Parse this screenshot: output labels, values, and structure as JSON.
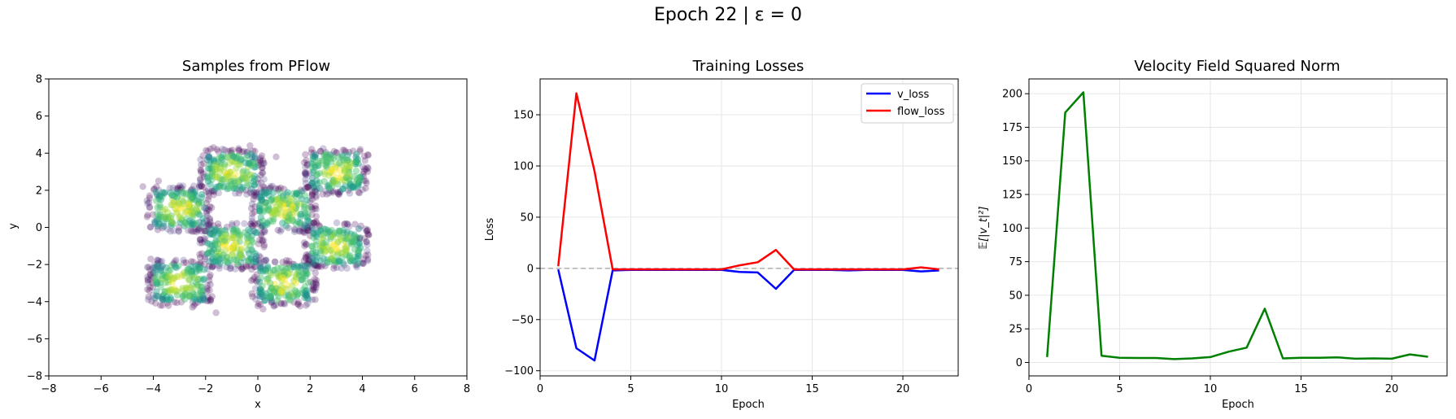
{
  "figure": {
    "suptitle": "Epoch 22 | ε = 0"
  },
  "colors": {
    "v_loss": "#0000ff",
    "flow_loss": "#ff0000",
    "norm": "#008000",
    "grid": "#e6e6e6",
    "zero_line": "#b0b0b0"
  },
  "chart_data": [
    {
      "type": "scatter",
      "title": "Samples from PFlow",
      "xlabel": "x",
      "ylabel": "y",
      "xlim": [
        -8,
        8
      ],
      "ylim": [
        -8,
        8
      ],
      "xticks": [
        "−8",
        "−6",
        "−4",
        "−2",
        "0",
        "2",
        "4",
        "6",
        "8"
      ],
      "yticks": [
        "−8",
        "−6",
        "−4",
        "−2",
        "0",
        "2",
        "4",
        "6",
        "8"
      ],
      "grid": false,
      "colormap": "viridis",
      "clusters": [
        {
          "x": [
            -2,
            0
          ],
          "y": [
            2,
            4
          ]
        },
        {
          "x": [
            2,
            4
          ],
          "y": [
            2,
            4
          ]
        },
        {
          "x": [
            -4,
            -2
          ],
          "y": [
            0,
            2
          ]
        },
        {
          "x": [
            0,
            2
          ],
          "y": [
            0,
            2
          ]
        },
        {
          "x": [
            -2,
            0
          ],
          "y": [
            -2,
            0
          ]
        },
        {
          "x": [
            2,
            4
          ],
          "y": [
            -2,
            0
          ]
        },
        {
          "x": [
            -4,
            -2
          ],
          "y": [
            -4,
            -2
          ]
        },
        {
          "x": [
            0,
            2
          ],
          "y": [
            -4,
            -2
          ]
        }
      ]
    },
    {
      "type": "line",
      "title": "Training Losses",
      "xlabel": "Epoch",
      "ylabel": "Loss",
      "xlim": [
        0,
        23.05
      ],
      "ylim": [
        -105,
        185
      ],
      "xticks": [
        "0",
        "5",
        "10",
        "15",
        "20"
      ],
      "yticks": [
        "−100",
        "−50",
        "0",
        "50",
        "100",
        "150"
      ],
      "grid": true,
      "legend": "top-right",
      "x": [
        1,
        2,
        3,
        4,
        5,
        6,
        7,
        8,
        9,
        10,
        11,
        12,
        13,
        14,
        15,
        16,
        17,
        18,
        19,
        20,
        21,
        22
      ],
      "series": [
        {
          "name": "v_loss",
          "values": [
            -1,
            -78,
            -90,
            -2,
            -1.5,
            -1.5,
            -1.5,
            -1.5,
            -1.5,
            -1.5,
            -3.5,
            -4,
            -20,
            -1.5,
            -1.5,
            -1.5,
            -2,
            -1.5,
            -1.5,
            -1.5,
            -3,
            -2
          ]
        },
        {
          "name": "flow_loss",
          "values": [
            2,
            171,
            95,
            -1,
            -1,
            -1,
            -1,
            -1,
            -1,
            -1,
            3,
            6,
            18,
            -1,
            -1,
            -1,
            -1,
            -1,
            -1,
            -1,
            1,
            -1
          ]
        }
      ],
      "reference_line": 0
    },
    {
      "type": "line",
      "title": "Velocity Field Squared Norm",
      "xlabel": "Epoch",
      "ylabel": "𝔼[|v_t|²]",
      "xlim": [
        0,
        23.05
      ],
      "ylim": [
        -10,
        211
      ],
      "xticks": [
        "0",
        "5",
        "10",
        "15",
        "20"
      ],
      "yticks": [
        "0",
        "25",
        "50",
        "75",
        "100",
        "125",
        "150",
        "175",
        "200"
      ],
      "grid": true,
      "x": [
        1,
        2,
        3,
        4,
        5,
        6,
        7,
        8,
        9,
        10,
        11,
        12,
        13,
        14,
        15,
        16,
        17,
        18,
        19,
        20,
        21,
        22
      ],
      "series": [
        {
          "values": [
            4,
            186,
            201,
            5,
            3.5,
            3.3,
            3.3,
            2.5,
            3,
            4,
            8,
            11,
            40,
            3,
            3.5,
            3.5,
            3.8,
            2.8,
            3,
            2.8,
            6,
            4.2
          ]
        }
      ]
    }
  ]
}
